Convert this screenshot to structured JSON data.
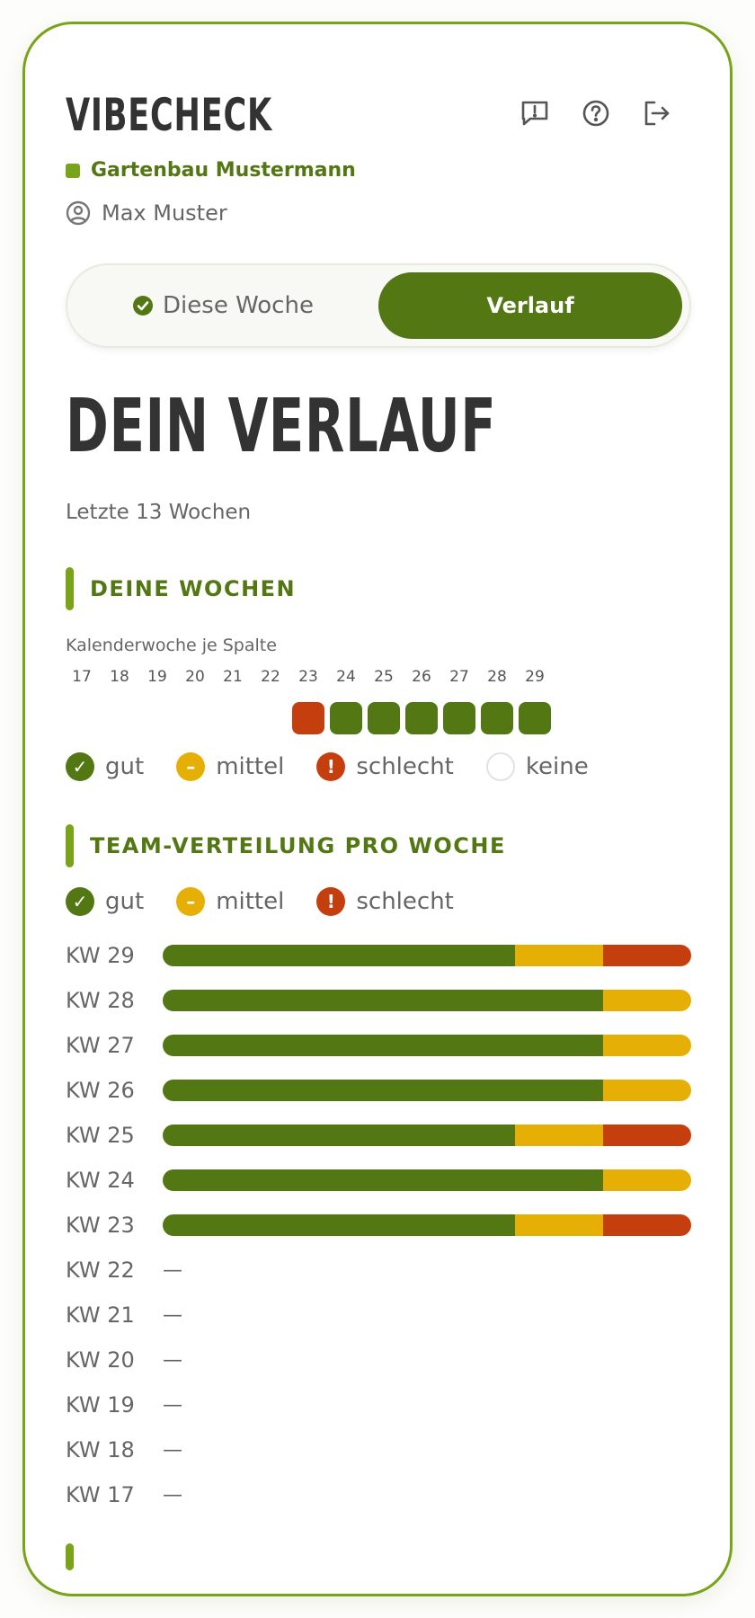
{
  "app": {
    "brand": "VIBECHECK"
  },
  "header": {
    "icons": [
      "feedback-icon",
      "help-icon",
      "logout-icon"
    ],
    "company": "Gartenbau Mustermann",
    "user": "Max Muster"
  },
  "tabs": [
    {
      "label": "Diese Woche",
      "active": false
    },
    {
      "label": "Verlauf",
      "active": true
    }
  ],
  "main": {
    "title": "DEIN VERLAUF",
    "subtitle": "Letzte 13 Wochen"
  },
  "weeks_section": {
    "heading": "DEINE WOCHEN",
    "caption": "Kalenderwoche je Spalte",
    "weeks": [
      "17",
      "18",
      "19",
      "20",
      "21",
      "22",
      "23",
      "24",
      "25",
      "26",
      "27",
      "28",
      "29"
    ],
    "statuses": [
      "keine",
      "keine",
      "keine",
      "keine",
      "keine",
      "keine",
      "schlecht",
      "gut",
      "gut",
      "gut",
      "gut",
      "gut",
      "gut"
    ],
    "legend": [
      {
        "key": "gut",
        "label": "gut"
      },
      {
        "key": "mittel",
        "label": "mittel"
      },
      {
        "key": "schlecht",
        "label": "schlecht"
      },
      {
        "key": "keine",
        "label": "keine"
      }
    ]
  },
  "team_section": {
    "heading": "TEAM-VERTEILUNG PRO WOCHE",
    "legend": [
      {
        "key": "gut",
        "label": "gut"
      },
      {
        "key": "mittel",
        "label": "mittel"
      },
      {
        "key": "schlecht",
        "label": "schlecht"
      }
    ],
    "rows": [
      {
        "label": "KW 29",
        "gut": 4,
        "mittel": 1,
        "schlecht": 1
      },
      {
        "label": "KW 28",
        "gut": 5,
        "mittel": 1,
        "schlecht": 0
      },
      {
        "label": "KW 27",
        "gut": 5,
        "mittel": 1,
        "schlecht": 0
      },
      {
        "label": "KW 26",
        "gut": 5,
        "mittel": 1,
        "schlecht": 0
      },
      {
        "label": "KW 25",
        "gut": 4,
        "mittel": 1,
        "schlecht": 1
      },
      {
        "label": "KW 24",
        "gut": 5,
        "mittel": 1,
        "schlecht": 0
      },
      {
        "label": "KW 23",
        "gut": 4,
        "mittel": 1,
        "schlecht": 1
      },
      {
        "label": "KW 22",
        "empty": "—"
      },
      {
        "label": "KW 21",
        "empty": "—"
      },
      {
        "label": "KW 20",
        "empty": "—"
      },
      {
        "label": "KW 19",
        "empty": "—"
      },
      {
        "label": "KW 18",
        "empty": "—"
      },
      {
        "label": "KW 17",
        "empty": "—"
      }
    ]
  },
  "colors": {
    "gut": "#527713",
    "mittel": "#e6af05",
    "schlecht": "#c53f0e",
    "accent": "#79a319"
  }
}
